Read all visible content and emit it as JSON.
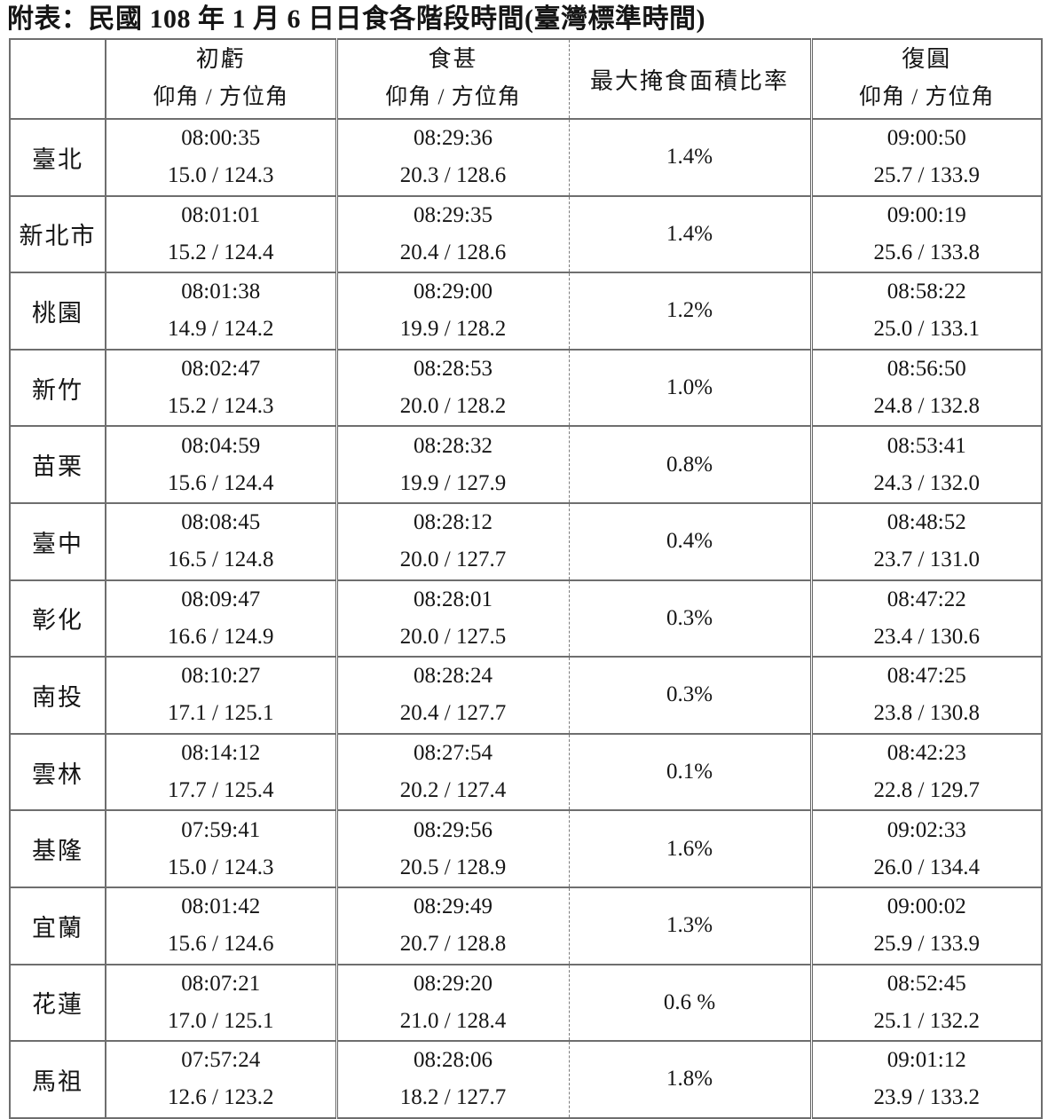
{
  "title": "附表：民國 108 年 1 月 6 日日食各階段時間(臺灣標準時間)",
  "table": {
    "headers": {
      "first_contact": "初虧",
      "greatest": "食甚",
      "obscuration": "最大掩食面積比率",
      "last_contact": "復圓",
      "subheader": "仰角 / 方位角"
    },
    "rows": [
      {
        "location": "臺北",
        "first_contact": {
          "time": "08:00:35",
          "angles": "15.0 / 124.3"
        },
        "greatest": {
          "time": "08:29:36",
          "angles": "20.3 / 128.6"
        },
        "obscuration": "1.4%",
        "last_contact": {
          "time": "09:00:50",
          "angles": "25.7 / 133.9"
        }
      },
      {
        "location": "新北市",
        "first_contact": {
          "time": "08:01:01",
          "angles": "15.2 / 124.4"
        },
        "greatest": {
          "time": "08:29:35",
          "angles": "20.4 / 128.6"
        },
        "obscuration": "1.4%",
        "last_contact": {
          "time": "09:00:19",
          "angles": "25.6 / 133.8"
        }
      },
      {
        "location": "桃園",
        "first_contact": {
          "time": "08:01:38",
          "angles": "14.9 / 124.2"
        },
        "greatest": {
          "time": "08:29:00",
          "angles": "19.9 / 128.2"
        },
        "obscuration": "1.2%",
        "last_contact": {
          "time": "08:58:22",
          "angles": "25.0 / 133.1"
        }
      },
      {
        "location": "新竹",
        "first_contact": {
          "time": "08:02:47",
          "angles": "15.2 / 124.3"
        },
        "greatest": {
          "time": "08:28:53",
          "angles": "20.0 / 128.2"
        },
        "obscuration": "1.0%",
        "last_contact": {
          "time": "08:56:50",
          "angles": "24.8 / 132.8"
        }
      },
      {
        "location": "苗栗",
        "first_contact": {
          "time": "08:04:59",
          "angles": "15.6 / 124.4"
        },
        "greatest": {
          "time": "08:28:32",
          "angles": "19.9 / 127.9"
        },
        "obscuration": "0.8%",
        "last_contact": {
          "time": "08:53:41",
          "angles": "24.3 / 132.0"
        }
      },
      {
        "location": "臺中",
        "first_contact": {
          "time": "08:08:45",
          "angles": "16.5 / 124.8"
        },
        "greatest": {
          "time": "08:28:12",
          "angles": "20.0 / 127.7"
        },
        "obscuration": "0.4%",
        "last_contact": {
          "time": "08:48:52",
          "angles": "23.7 / 131.0"
        }
      },
      {
        "location": "彰化",
        "first_contact": {
          "time": "08:09:47",
          "angles": "16.6 / 124.9"
        },
        "greatest": {
          "time": "08:28:01",
          "angles": "20.0 / 127.5"
        },
        "obscuration": "0.3%",
        "last_contact": {
          "time": "08:47:22",
          "angles": "23.4 / 130.6"
        }
      },
      {
        "location": "南投",
        "first_contact": {
          "time": "08:10:27",
          "angles": "17.1 / 125.1"
        },
        "greatest": {
          "time": "08:28:24",
          "angles": "20.4 / 127.7"
        },
        "obscuration": "0.3%",
        "last_contact": {
          "time": "08:47:25",
          "angles": "23.8 / 130.8"
        }
      },
      {
        "location": "雲林",
        "first_contact": {
          "time": "08:14:12",
          "angles": "17.7 / 125.4"
        },
        "greatest": {
          "time": "08:27:54",
          "angles": "20.2 / 127.4"
        },
        "obscuration": "0.1%",
        "last_contact": {
          "time": "08:42:23",
          "angles": "22.8 / 129.7"
        }
      },
      {
        "location": "基隆",
        "first_contact": {
          "time": "07:59:41",
          "angles": "15.0 / 124.3"
        },
        "greatest": {
          "time": "08:29:56",
          "angles": "20.5 / 128.9"
        },
        "obscuration": "1.6%",
        "last_contact": {
          "time": "09:02:33",
          "angles": "26.0 / 134.4"
        }
      },
      {
        "location": "宜蘭",
        "first_contact": {
          "time": "08:01:42",
          "angles": "15.6 / 124.6"
        },
        "greatest": {
          "time": "08:29:49",
          "angles": "20.7 / 128.8"
        },
        "obscuration": "1.3%",
        "last_contact": {
          "time": "09:00:02",
          "angles": "25.9 / 133.9"
        }
      },
      {
        "location": "花蓮",
        "first_contact": {
          "time": "08:07:21",
          "angles": "17.0 / 125.1"
        },
        "greatest": {
          "time": "08:29:20",
          "angles": "21.0 / 128.4"
        },
        "obscuration": "0.6 %",
        "last_contact": {
          "time": "08:52:45",
          "angles": "25.1 / 132.2"
        }
      },
      {
        "location": "馬祖",
        "first_contact": {
          "time": "07:57:24",
          "angles": "12.6 / 123.2"
        },
        "greatest": {
          "time": "08:28:06",
          "angles": "18.2 / 127.7"
        },
        "obscuration": "1.8%",
        "last_contact": {
          "time": "09:01:12",
          "angles": "23.9 / 133.2"
        }
      }
    ]
  }
}
